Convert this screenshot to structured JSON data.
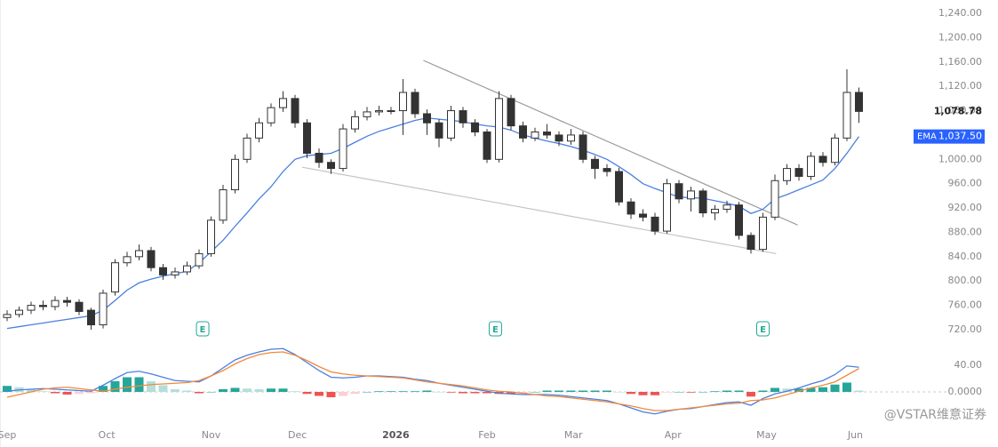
{
  "chart_data": [
    {
      "type": "candlestick",
      "ylim": [
        720,
        1240
      ],
      "yticks": [
        {
          "value": 1240,
          "label": "1,240.00"
        },
        {
          "value": 1200,
          "label": "1,200.00"
        },
        {
          "value": 1160,
          "label": "1,160.00"
        },
        {
          "value": 1120,
          "label": "1,120.00"
        },
        {
          "value": 1080,
          "label": "1,080.00"
        },
        {
          "value": 1040,
          "label": "1,040.00"
        },
        {
          "value": 1000,
          "label": "1,000.00"
        },
        {
          "value": 960,
          "label": "960.00"
        },
        {
          "value": 920,
          "label": "920.00"
        },
        {
          "value": 880,
          "label": "880.00"
        },
        {
          "value": 840,
          "label": "840.00"
        },
        {
          "value": 800,
          "label": "800.00"
        },
        {
          "value": 760,
          "label": "760.00"
        },
        {
          "value": 720,
          "label": "720.00"
        }
      ],
      "xticks": [
        {
          "value": 0,
          "label": "Sep"
        },
        {
          "value": 8.3,
          "label": "Oct"
        },
        {
          "value": 17,
          "label": "Nov"
        },
        {
          "value": 24.2,
          "label": "Dec"
        },
        {
          "value": 32.4,
          "label": "2026"
        },
        {
          "value": 40,
          "label": "Feb"
        },
        {
          "value": 47.2,
          "label": "Mar"
        },
        {
          "value": 55.5,
          "label": "Apr"
        },
        {
          "value": 63.3,
          "label": "May"
        },
        {
          "value": 70.7,
          "label": "Jun"
        }
      ],
      "open": [
        740,
        745,
        752,
        760,
        758,
        768,
        765,
        752,
        728,
        782,
        830,
        840,
        850,
        822,
        810,
        815,
        825,
        845,
        900,
        950,
        1000,
        1035,
        1060,
        1085,
        1100,
        1060,
        1010,
        995,
        985,
        1050,
        1070,
        1078,
        1080,
        1080,
        1110,
        1075,
        1060,
        1035,
        1080,
        1060,
        1045,
        1000,
        1100,
        1055,
        1035,
        1045,
        1040,
        1030,
        1040,
        1000,
        985,
        980,
        930,
        910,
        905,
        882,
        960,
        935,
        948,
        912,
        918,
        925,
        875,
        852,
        905,
        965,
        985,
        972,
        1005,
        995,
        1035,
        1110
      ],
      "high": [
        752,
        758,
        766,
        768,
        775,
        774,
        770,
        756,
        786,
        836,
        848,
        860,
        856,
        828,
        822,
        832,
        852,
        906,
        958,
        1008,
        1042,
        1068,
        1092,
        1112,
        1106,
        1066,
        1018,
        1000,
        1058,
        1080,
        1086,
        1088,
        1086,
        1132,
        1116,
        1082,
        1066,
        1088,
        1086,
        1066,
        1050,
        1112,
        1106,
        1062,
        1052,
        1058,
        1046,
        1050,
        1046,
        1006,
        992,
        986,
        936,
        918,
        912,
        968,
        966,
        955,
        952,
        925,
        932,
        930,
        880,
        912,
        975,
        992,
        992,
        1012,
        1012,
        1042,
        1148,
        1118
      ],
      "low": [
        734,
        740,
        746,
        752,
        752,
        758,
        744,
        720,
        722,
        776,
        824,
        834,
        816,
        802,
        804,
        810,
        820,
        840,
        894,
        944,
        994,
        1028,
        1054,
        1078,
        1052,
        1002,
        986,
        976,
        980,
        1044,
        1064,
        1072,
        1074,
        1040,
        1068,
        1040,
        1020,
        1030,
        1052,
        1038,
        994,
        995,
        1048,
        1028,
        1030,
        1034,
        1022,
        1024,
        994,
        968,
        972,
        924,
        902,
        898,
        876,
        878,
        928,
        914,
        905,
        900,
        912,
        868,
        845,
        848,
        900,
        958,
        965,
        966,
        988,
        990,
        1030,
        1060
      ],
      "close": [
        745,
        752,
        760,
        758,
        768,
        765,
        750,
        728,
        780,
        830,
        840,
        850,
        822,
        810,
        815,
        825,
        845,
        900,
        950,
        1000,
        1035,
        1060,
        1085,
        1100,
        1060,
        1010,
        995,
        985,
        1050,
        1070,
        1078,
        1080,
        1080,
        1110,
        1075,
        1060,
        1035,
        1080,
        1060,
        1045,
        1000,
        1100,
        1055,
        1035,
        1045,
        1040,
        1030,
        1040,
        1000,
        985,
        980,
        930,
        910,
        905,
        882,
        960,
        935,
        948,
        912,
        918,
        925,
        875,
        852,
        905,
        965,
        985,
        972,
        1005,
        995,
        1035,
        1110,
        1078.78
      ],
      "up_color": "#ffffff",
      "down_color": "#333333",
      "outline_color": "#333333",
      "series": [
        {
          "name": "EMA",
          "color": "#4a7fe0",
          "values": [
            722,
            725,
            728,
            731,
            734,
            737,
            740,
            743,
            752,
            768,
            785,
            797,
            803,
            808,
            812,
            816,
            830,
            848,
            867,
            890,
            912,
            935,
            955,
            980,
            1000,
            1006,
            1008,
            1010,
            1018,
            1028,
            1038,
            1046,
            1052,
            1058,
            1064,
            1068,
            1066,
            1064,
            1062,
            1058,
            1055,
            1053,
            1048,
            1040,
            1035,
            1030,
            1026,
            1021,
            1015,
            1008,
            1000,
            988,
            975,
            960,
            952,
            945,
            938,
            937,
            936,
            932,
            928,
            923,
            911,
            918,
            935,
            942,
            950,
            958,
            966,
            985,
            1010,
            1037.5
          ],
          "last_label": {
            "value": 1037.5,
            "label": "1,037.50"
          },
          "label_color": "#2962ff"
        }
      ],
      "last_price": {
        "value": 1078.78,
        "label": "1,078.78"
      },
      "trendlines": [
        {
          "x": [
            34.7,
            65.9
          ],
          "y": [
            1162.6,
            892
          ],
          "color": "#9a9a9a"
        },
        {
          "x": [
            24.6,
            64.1
          ],
          "y": [
            987,
            845
          ],
          "color": "#c4c4c4"
        }
      ],
      "events": [
        {
          "x": 16.3,
          "label": "E"
        },
        {
          "x": 40.7,
          "label": "E"
        },
        {
          "x": 63,
          "label": "E"
        }
      ],
      "event_color": "#26a69a"
    },
    {
      "type": "macd",
      "ylim": [
        -40,
        60
      ],
      "yticks": [
        {
          "value": 40,
          "label": "40.00"
        },
        {
          "value": 0,
          "label": "0.0000"
        }
      ],
      "series": [
        {
          "color": "#4a7fe0",
          "values": [
            1,
            3,
            4,
            5,
            4,
            3,
            2,
            1,
            10,
            20,
            29,
            31,
            27,
            22,
            17,
            16,
            15,
            24,
            36,
            48,
            55,
            60,
            64,
            65,
            56,
            44,
            32,
            22,
            21,
            22,
            24,
            24,
            23,
            22,
            19,
            17,
            13,
            10,
            7,
            4,
            1,
            -2,
            -3,
            -4,
            -4,
            -4,
            -5,
            -7,
            -9,
            -11,
            -13,
            -18,
            -24,
            -30,
            -33,
            -29,
            -26,
            -25,
            -22,
            -19,
            -16,
            -15,
            -20,
            -10,
            -3,
            1,
            6,
            12,
            17,
            26,
            39,
            37
          ]
        },
        {
          "color": "#f08a3c",
          "values": [
            -8,
            -4,
            0,
            4,
            6,
            7,
            5,
            3,
            1,
            4,
            7,
            9,
            11,
            12,
            13,
            14,
            17,
            24,
            32,
            42,
            50,
            56,
            59,
            60,
            55,
            47,
            38,
            30,
            27,
            25,
            24,
            23,
            22,
            21,
            18,
            15,
            13,
            11,
            9,
            6,
            3,
            1,
            0,
            -2,
            -4,
            -6,
            -7,
            -9,
            -11,
            -13,
            -15,
            -18,
            -21,
            -25,
            -28,
            -28,
            -26,
            -24,
            -22,
            -20,
            -18,
            -17,
            -13,
            -12,
            -9,
            -4,
            1,
            6,
            10,
            15,
            25,
            35
          ]
        }
      ],
      "histogram": {
        "values": [
          9,
          7,
          4,
          1,
          -2,
          -4,
          -3,
          -2,
          9,
          16,
          22,
          22,
          16,
          10,
          4,
          2,
          -2,
          0,
          4,
          6,
          5,
          4,
          5,
          5,
          1,
          -3,
          -6,
          -8,
          -6,
          -3,
          0,
          1,
          1,
          1,
          1,
          2,
          0,
          -1,
          -2,
          -2,
          -2,
          -3,
          -3,
          -2,
          0,
          2,
          2,
          2,
          2,
          2,
          2,
          0,
          -3,
          -5,
          -5,
          -1,
          0,
          -1,
          0,
          1,
          2,
          2,
          -7,
          2,
          6,
          5,
          5,
          6,
          7,
          11,
          14,
          2
        ],
        "colors": {
          "pos_up": "#26a69a",
          "pos_down": "#b2dfdb",
          "neg_down": "#ef5350",
          "neg_up": "#ffcdd2"
        }
      }
    }
  ],
  "watermark": "@VSTAR维意证券"
}
